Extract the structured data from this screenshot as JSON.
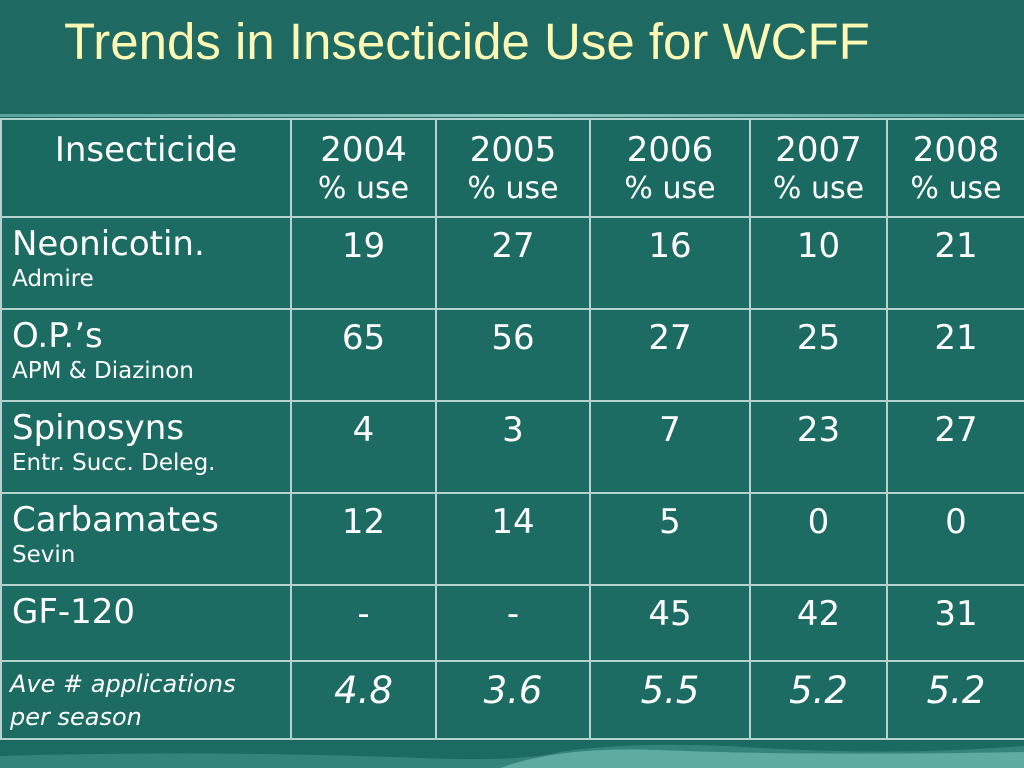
{
  "slide": {
    "title": "Trends in Insecticide Use for WCFF"
  },
  "table": {
    "header": {
      "insecticide": "Insecticide",
      "years": [
        {
          "year": "2004",
          "sub": "% use"
        },
        {
          "year": "2005",
          "sub": "% use"
        },
        {
          "year": "2006",
          "sub": "% use"
        },
        {
          "year": "2007",
          "sub": "% use"
        },
        {
          "year": "2008",
          "sub": "% use"
        }
      ]
    },
    "rows": [
      {
        "name": "Neonicotin.",
        "sub": "Admire",
        "values": [
          "19",
          "27",
          "16",
          "10",
          "21"
        ]
      },
      {
        "name": "O.P.’s",
        "sub": "APM & Diazinon",
        "values": [
          "65",
          "56",
          "27",
          "25",
          "21"
        ]
      },
      {
        "name": "Spinosyns",
        "sub": "Entr. Succ. Deleg.",
        "values": [
          "4",
          "3",
          "7",
          "23",
          "27"
        ]
      },
      {
        "name": "Carbamates",
        "sub": "Sevin",
        "values": [
          "12",
          "14",
          "5",
          "0",
          "0"
        ]
      },
      {
        "name": "GF-120",
        "sub": "",
        "values": [
          "-",
          "-",
          "45",
          "42",
          "31"
        ]
      }
    ],
    "average": {
      "label_line1": "Ave # applications",
      "label_line2": "per season",
      "values": [
        "4.8",
        "3.6",
        "5.5",
        "5.2",
        "5.2"
      ]
    }
  },
  "colors": {
    "background": "#1c6b63",
    "title": "#fdf9b5",
    "grid": "#b6d4cf",
    "text": "#ffffff"
  }
}
